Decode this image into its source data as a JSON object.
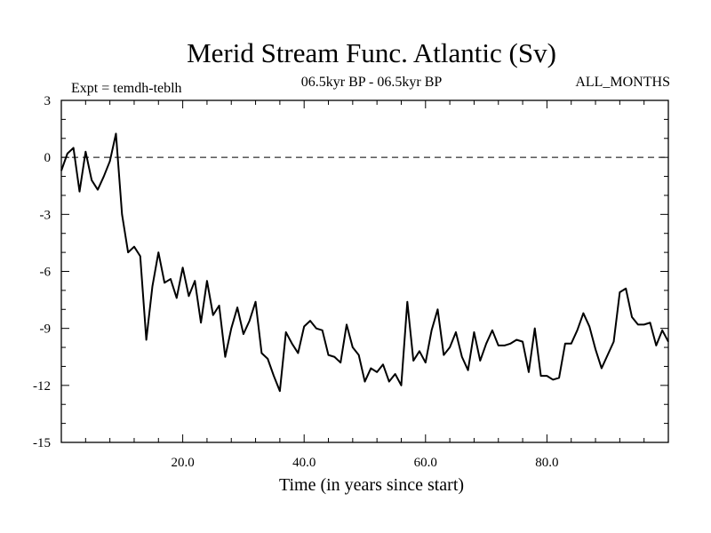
{
  "chart_data": {
    "type": "line",
    "title": "Merid Stream Func. Atlantic (Sv)",
    "subtitle_left": "Expt = temdh-teblh",
    "subtitle_center": "06.5kyr BP - 06.5kyr BP",
    "subtitle_right": "ALL_MONTHS",
    "xlabel": "Time (in years since start)",
    "ylabel": "",
    "xlim": [
      0,
      100
    ],
    "ylim": [
      -15,
      3
    ],
    "x_ticks": [
      20,
      40,
      60,
      80
    ],
    "x_tick_labels": [
      "20.0",
      "40.0",
      "60.0",
      "80.0"
    ],
    "y_ticks": [
      3,
      0,
      -3,
      -6,
      -9,
      -12,
      -15
    ],
    "y_tick_labels": [
      "3",
      "0",
      "-3",
      "-6",
      "-9",
      "-12",
      "-15"
    ],
    "reference_line": {
      "y": 0,
      "style": "dashed"
    },
    "grid": false,
    "series": [
      {
        "name": "Merid Stream Func. Atlantic",
        "color": "#000000",
        "x": [
          0,
          1,
          2,
          3,
          4,
          5,
          6,
          7,
          8,
          9,
          10,
          11,
          12,
          13,
          14,
          15,
          16,
          17,
          18,
          19,
          20,
          21,
          22,
          23,
          24,
          25,
          26,
          27,
          28,
          29,
          30,
          31,
          32,
          33,
          34,
          35,
          36,
          37,
          38,
          39,
          40,
          41,
          42,
          43,
          44,
          45,
          46,
          47,
          48,
          49,
          50,
          51,
          52,
          53,
          54,
          55,
          56,
          57,
          58,
          59,
          60,
          61,
          62,
          63,
          64,
          65,
          66,
          67,
          68,
          69,
          70,
          71,
          72,
          73,
          74,
          75,
          76,
          77,
          78,
          79,
          80,
          81,
          82,
          83,
          84,
          85,
          86,
          87,
          88,
          89,
          90,
          91,
          92,
          93,
          94,
          95,
          96,
          97,
          98,
          99,
          100
        ],
        "values": [
          -0.7,
          0.2,
          0.5,
          -1.8,
          0.3,
          -1.2,
          -1.7,
          -1.0,
          -0.2,
          1.25,
          -3.0,
          -5.0,
          -4.7,
          -5.2,
          -9.6,
          -6.8,
          -5.0,
          -6.6,
          -6.4,
          -7.4,
          -5.8,
          -7.3,
          -6.5,
          -8.7,
          -6.5,
          -8.3,
          -7.8,
          -10.5,
          -9.0,
          -7.9,
          -9.3,
          -8.6,
          -7.6,
          -10.3,
          -10.6,
          -11.5,
          -12.3,
          -9.2,
          -9.8,
          -10.3,
          -8.9,
          -8.6,
          -9.0,
          -9.1,
          -10.4,
          -10.5,
          -10.8,
          -8.8,
          -10.0,
          -10.4,
          -11.8,
          -11.1,
          -11.3,
          -10.9,
          -11.8,
          -11.4,
          -12.0,
          -7.6,
          -10.7,
          -10.2,
          -10.8,
          -9.1,
          -8.0,
          -10.4,
          -10.0,
          -9.2,
          -10.5,
          -11.2,
          -9.2,
          -10.7,
          -9.8,
          -9.1,
          -9.9,
          -9.9,
          -9.8,
          -9.6,
          -9.7,
          -11.3,
          -9.0,
          -11.5,
          -11.5,
          -11.7,
          -11.6,
          -9.8,
          -9.8,
          -9.1,
          -8.2,
          -8.9,
          -10.1,
          -11.1,
          -10.4,
          -9.7,
          -7.1,
          -6.9,
          -8.4,
          -8.8,
          -8.8,
          -8.7,
          -9.9,
          -9.1,
          -9.7
        ]
      }
    ]
  }
}
